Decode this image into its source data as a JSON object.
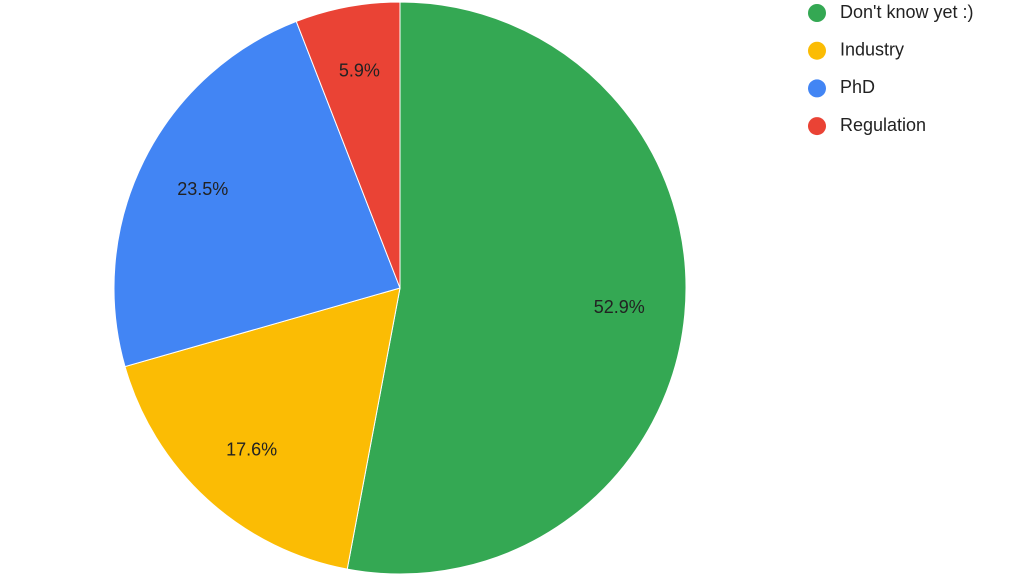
{
  "chart_data": {
    "type": "pie",
    "categories": [
      "Don't know yet :)",
      "Industry",
      "PhD",
      "Regulation"
    ],
    "values": [
      52.9,
      17.6,
      23.5,
      5.9
    ],
    "value_labels": [
      "52.9%",
      "17.6%",
      "23.5%",
      "5.9%"
    ],
    "colors": [
      "#34a853",
      "#fbbc04",
      "#4285f4",
      "#ea4335"
    ],
    "legend": "top-right"
  }
}
